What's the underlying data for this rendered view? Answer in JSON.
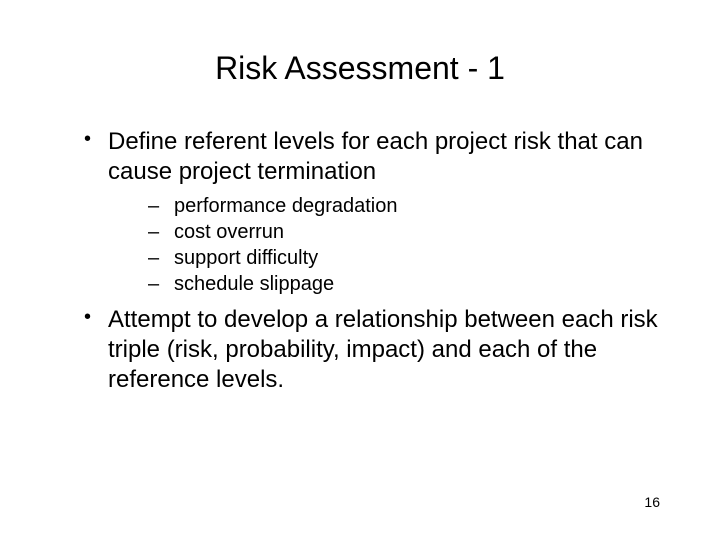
{
  "title": "Risk Assessment - 1",
  "bullets": [
    {
      "text": "Define referent levels for each project risk that can cause project termination",
      "subitems": [
        "performance degradation",
        "cost overrun",
        "support difficulty",
        "schedule slippage"
      ]
    },
    {
      "text": "Attempt to develop a relationship between each risk triple (risk, probability, impact) and each of the reference levels.",
      "subitems": []
    }
  ],
  "page_number": "16",
  "colors": {
    "background": "#ffffff",
    "text": "#000000"
  },
  "fonts": {
    "title_size": 32,
    "bullet_size": 24,
    "sub_size": 20,
    "page_num_size": 14,
    "family": "Arial"
  }
}
